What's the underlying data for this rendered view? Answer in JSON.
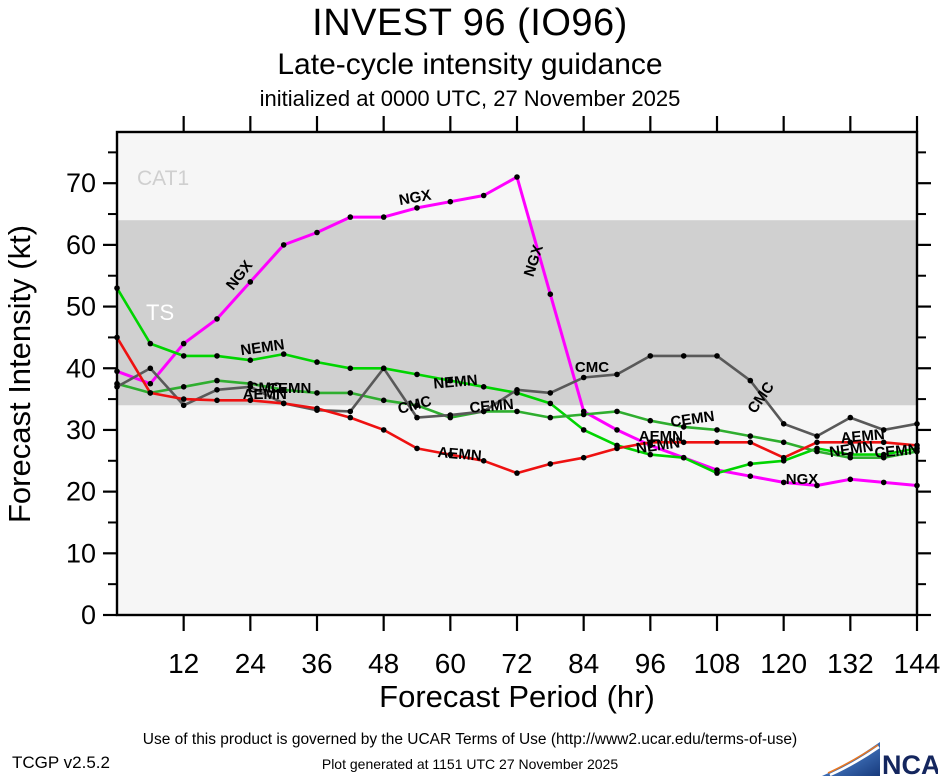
{
  "header": {
    "title": "INVEST 96 (IO96)",
    "subtitle": "Late-cycle intensity guidance",
    "init_line": "initialized at 0000 UTC, 27 November 2025"
  },
  "footer": {
    "terms": "Use of this product is governed by the UCAR Terms of Use (http://www2.ucar.edu/terms-of-use)",
    "version": "TCGP v2.5.2",
    "generated": "Plot generated at 1151 UTC  27 November 2025",
    "logo_text": "NCAR"
  },
  "chart_data": {
    "type": "line",
    "title": "INVEST 96 (IO96)",
    "xlabel": "Forecast Period (hr)",
    "ylabel": "Forecast Intensity (kt)",
    "xlim": [
      0,
      144
    ],
    "ylim": [
      0,
      78.3
    ],
    "x_ticks": [
      12,
      24,
      36,
      48,
      60,
      72,
      84,
      96,
      108,
      120,
      132,
      144
    ],
    "y_ticks": [
      0,
      10,
      20,
      30,
      40,
      50,
      60,
      70
    ],
    "y_minor_step": 5,
    "grid": false,
    "x": [
      0,
      6,
      12,
      18,
      24,
      30,
      36,
      42,
      48,
      54,
      60,
      66,
      72,
      78,
      84,
      90,
      96,
      102,
      108,
      114,
      120,
      126,
      132,
      138,
      144
    ],
    "series": [
      {
        "name": "NGX",
        "color": "#ff00ff",
        "width": 3,
        "values": [
          39.5,
          37.5,
          44,
          48,
          54,
          60,
          62,
          64.5,
          64.5,
          66,
          67,
          68,
          71,
          52,
          33,
          30,
          27.5,
          25.5,
          23.5,
          22.5,
          21.5,
          21,
          22,
          21.5,
          21
        ]
      },
      {
        "name": "NEMN",
        "color": "#00d400",
        "width": 2.6,
        "values": [
          53,
          44,
          42,
          42,
          41.3,
          42.3,
          41,
          40,
          40,
          39,
          38,
          37,
          36,
          34.3,
          30,
          27.5,
          26,
          25.5,
          23,
          24.5,
          25,
          27,
          26,
          26,
          27
        ]
      },
      {
        "name": "CEMN",
        "color": "#2fae2f",
        "width": 2.6,
        "values": [
          37.5,
          36,
          37,
          38,
          37.5,
          36.5,
          36,
          36,
          34.8,
          34,
          32,
          33,
          33,
          32,
          32.5,
          33,
          31.5,
          30.5,
          30,
          29,
          28,
          26.5,
          25.5,
          25.5,
          26.5
        ]
      },
      {
        "name": "CMC",
        "color": "#595959",
        "width": 2.6,
        "values": [
          37,
          40,
          34,
          36.5,
          37,
          34.3,
          33.2,
          33,
          40,
          32,
          32.4,
          33,
          36.5,
          36,
          38.5,
          39,
          42,
          42,
          42,
          38,
          31,
          29,
          32,
          30,
          31
        ]
      },
      {
        "name": "AEMN",
        "color": "#ee1111",
        "width": 2.6,
        "values": [
          45,
          36,
          35,
          34.8,
          34.8,
          34.3,
          33.5,
          32,
          30,
          27,
          26,
          25,
          23,
          24.5,
          25.5,
          27,
          28,
          28,
          28,
          28,
          25.5,
          28,
          28,
          28,
          27.5
        ]
      }
    ],
    "bands": [
      {
        "label": "TS",
        "from": 34,
        "to": 64,
        "color": "#d0d0d0"
      }
    ],
    "zone_labels": [
      {
        "text": "CAT1",
        "color": "#cfcfcf"
      },
      {
        "text": "TS",
        "color": "#ffffff"
      }
    ],
    "line_labels": [
      {
        "text": "NGX",
        "hr": 22.7,
        "kt": 54.6,
        "rot": -52
      },
      {
        "text": "NGX",
        "hr": 53.8,
        "kt": 66.9,
        "rot": -10
      },
      {
        "text": "NGX",
        "hr": 75.8,
        "kt": 57.2,
        "rot": -72
      },
      {
        "text": "NGX",
        "hr": 123.3,
        "kt": 21.2,
        "rot": 0
      },
      {
        "text": "NEMN",
        "hr": 26.3,
        "kt": 42.6,
        "rot": -8
      },
      {
        "text": "NEMN",
        "hr": 61.0,
        "kt": 37.0,
        "rot": -5
      },
      {
        "text": "NEMN",
        "hr": 97.5,
        "kt": 26.7,
        "rot": -8
      },
      {
        "text": "NEMN",
        "hr": 132.3,
        "kt": 26.1,
        "rot": -8
      },
      {
        "text": "CEMN",
        "hr": 31.0,
        "kt": 36.0,
        "rot": 0
      },
      {
        "text": "CEMN",
        "hr": 67.5,
        "kt": 33.1,
        "rot": -5
      },
      {
        "text": "CEMN",
        "hr": 103.7,
        "kt": 31.0,
        "rot": -8
      },
      {
        "text": "CEMN",
        "hr": 140.4,
        "kt": 25.8,
        "rot": -5
      },
      {
        "text": "CMC",
        "hr": 26.6,
        "kt": 36.1,
        "rot": 0
      },
      {
        "text": "CMC",
        "hr": 53.8,
        "kt": 33.3,
        "rot": -15
      },
      {
        "text": "CMC",
        "hr": 85.5,
        "kt": 39.4,
        "rot": 0
      },
      {
        "text": "CMC",
        "hr": 116.6,
        "kt": 34.8,
        "rot": -55
      },
      {
        "text": "AEMN",
        "hr": 26.6,
        "kt": 35.0,
        "rot": 0
      },
      {
        "text": "AEMN",
        "hr": 61.6,
        "kt": 25.3,
        "rot": 5
      },
      {
        "text": "AEMN",
        "hr": 97.9,
        "kt": 28.2,
        "rot": 0
      },
      {
        "text": "AEMN",
        "hr": 134.3,
        "kt": 28.2,
        "rot": -5
      }
    ]
  }
}
